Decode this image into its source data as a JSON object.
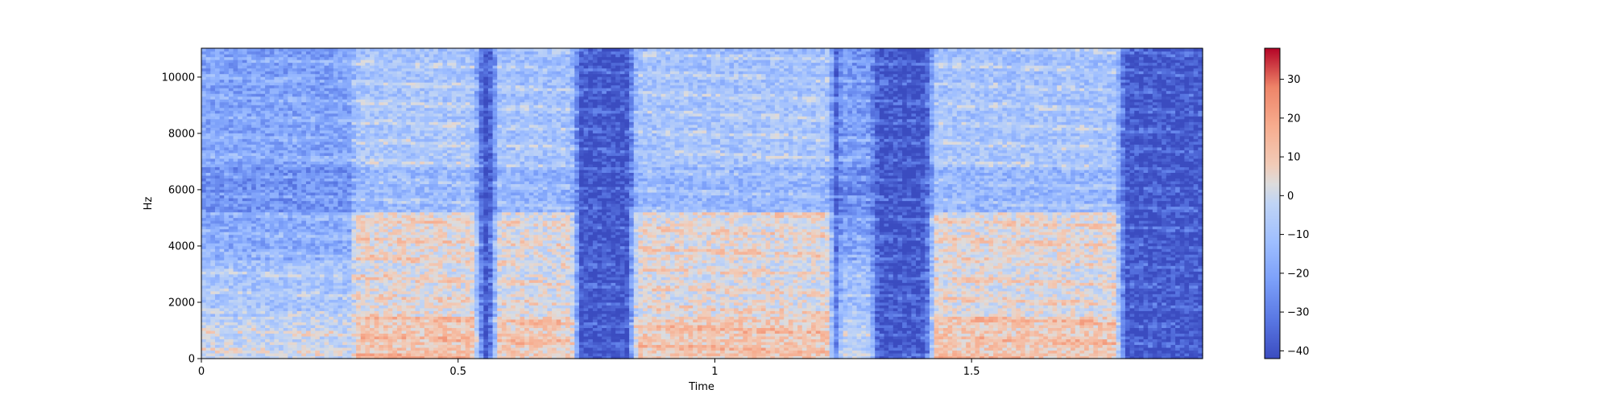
{
  "chart_data": {
    "type": "heatmap",
    "title": "",
    "xlabel": "Time",
    "ylabel": "Hz",
    "xlim": [
      0,
      1.95
    ],
    "ylim": [
      0,
      11025
    ],
    "x_ticks": [
      0,
      0.5,
      1,
      1.5
    ],
    "x_tick_labels": [
      "0",
      "0.5",
      "1",
      "1.5"
    ],
    "y_ticks": [
      0,
      2000,
      4000,
      6000,
      8000,
      10000
    ],
    "y_tick_labels": [
      "0",
      "2000",
      "4000",
      "6000",
      "8000",
      "10000"
    ],
    "colormap": "coolwarm",
    "colorbar": {
      "range": [
        -42,
        38
      ],
      "ticks": [
        -40,
        -30,
        -20,
        -10,
        0,
        10,
        20,
        30
      ],
      "tick_labels": [
        "−40",
        "−30",
        "−20",
        "−10",
        "0",
        "10",
        "20",
        "30"
      ],
      "placement": "right"
    },
    "segments": [
      {
        "start": 0.0,
        "end": 0.3,
        "level": -8,
        "high_band": true,
        "mid_band": false
      },
      {
        "start": 0.3,
        "end": 0.53,
        "level": 4,
        "high_band": true,
        "mid_band": true
      },
      {
        "start": 0.58,
        "end": 0.72,
        "level": 2,
        "high_band": true,
        "mid_band": true
      },
      {
        "start": 0.85,
        "end": 1.22,
        "level": 3,
        "high_band": true,
        "mid_band": true
      },
      {
        "start": 1.25,
        "end": 1.3,
        "level": -10,
        "high_band": true,
        "mid_band": false
      },
      {
        "start": 1.43,
        "end": 1.78,
        "level": 3,
        "high_band": true,
        "mid_band": true
      }
    ]
  }
}
